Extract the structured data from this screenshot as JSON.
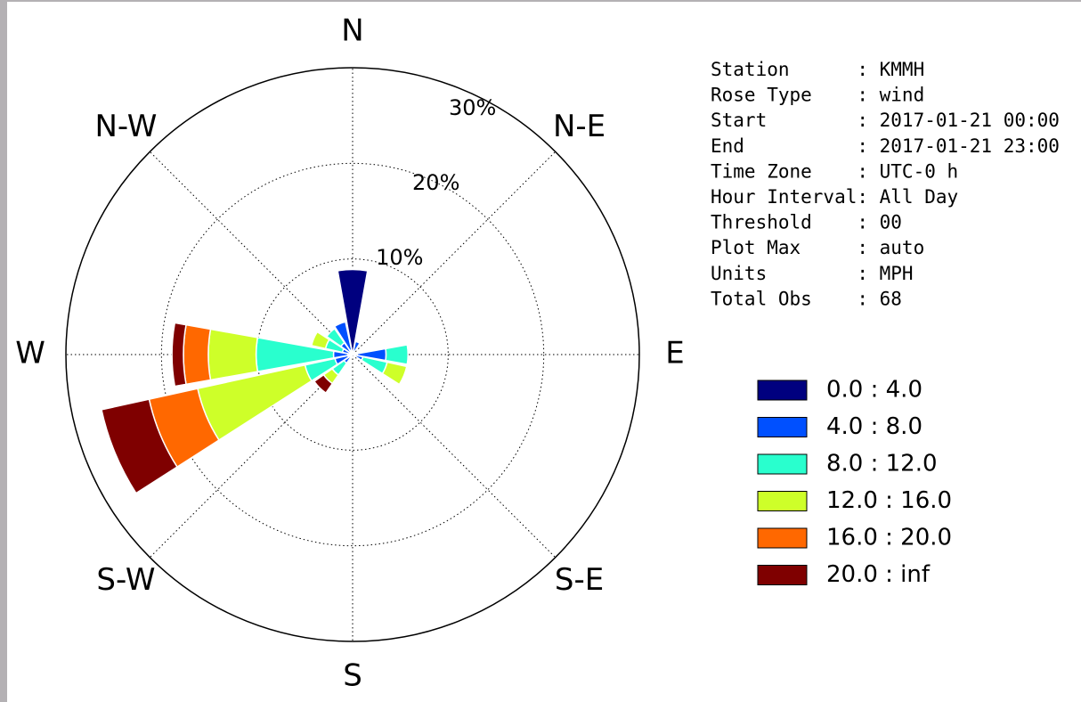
{
  "chart_data": {
    "type": "windrose",
    "categories": [
      "N",
      null,
      "N-E",
      null,
      "E",
      null,
      "S-E",
      null,
      "S",
      null,
      "S-W",
      null,
      "W",
      null,
      "N-W",
      null
    ],
    "series": [
      {
        "name": "0.0 : 4.0",
        "color": "#00007f",
        "values": [
          8.9,
          0.3,
          0,
          0,
          0.5,
          0.3,
          0,
          0,
          0,
          0,
          0.3,
          0.5,
          0.5,
          0.3,
          0.3,
          0.5
        ]
      },
      {
        "name": "4.0 : 8.0",
        "color": "#0050ff",
        "values": [
          0,
          1.1,
          0,
          0,
          3.0,
          0.8,
          0,
          0,
          0,
          0,
          0.8,
          1.4,
          1.5,
          0.8,
          1.2,
          3.0
        ]
      },
      {
        "name": "8.0 : 12.0",
        "color": "#29ffce",
        "values": [
          0,
          0,
          0,
          0,
          2.3,
          2.6,
          0,
          0,
          0,
          0,
          1.5,
          3.2,
          8.1,
          1.8,
          1.8,
          0
        ]
      },
      {
        "name": "12.0 : 16.0",
        "color": "#ceff29",
        "values": [
          0,
          0,
          0,
          0,
          0,
          2.1,
          0,
          0,
          0,
          0,
          1.1,
          11.5,
          5.0,
          1.5,
          0,
          0
        ]
      },
      {
        "name": "16.0 : 20.0",
        "color": "#ff6800",
        "values": [
          0,
          0,
          0,
          0,
          0,
          0,
          0,
          0,
          0,
          0,
          0,
          5.2,
          2.6,
          0,
          0,
          0
        ]
      },
      {
        "name": "20.0 : inf",
        "color": "#7f0000",
        "values": [
          0,
          0,
          0,
          0,
          0,
          0,
          0,
          0,
          0,
          0,
          1.2,
          5.1,
          1.2,
          0,
          0,
          0
        ]
      }
    ],
    "ylim": [
      0,
      30
    ],
    "yticks": [
      {
        "value": 10,
        "label": "10%"
      },
      {
        "value": 20,
        "label": "20%"
      },
      {
        "value": 30,
        "label": "30%"
      }
    ],
    "grid": true,
    "info": [
      "Station      : KMMH",
      "Rose Type    : wind",
      "Start        : 2017-01-21 00:00",
      "End          : 2017-01-21 23:00",
      "Time Zone    : UTC-0 h",
      "Hour Interval: All Day",
      "Threshold    : 00",
      "Plot Max     : auto",
      "Units        : MPH",
      "Total Obs    : 68"
    ]
  }
}
